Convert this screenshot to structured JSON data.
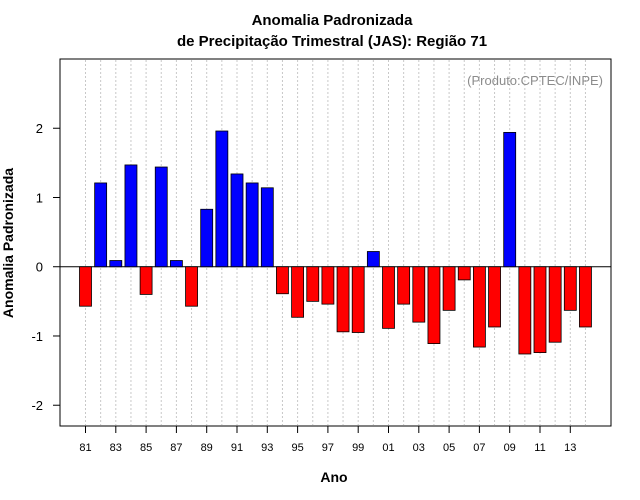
{
  "chart_data": {
    "type": "bar",
    "title": "Anomalia Padronizada",
    "subtitle": "de Precipitação Trimestral (JAS): Região 71",
    "xlabel": "Ano",
    "ylabel": "Anomalia Padronizada",
    "annotation": "(Produto:CPTEC/INPE)",
    "categories": [
      "81",
      "82",
      "83",
      "84",
      "85",
      "86",
      "87",
      "88",
      "89",
      "90",
      "91",
      "92",
      "93",
      "94",
      "95",
      "96",
      "97",
      "98",
      "99",
      "00",
      "01",
      "02",
      "03",
      "04",
      "05",
      "06",
      "07",
      "08",
      "09",
      "10",
      "11",
      "12",
      "13",
      "14"
    ],
    "values": [
      -0.57,
      1.21,
      0.09,
      1.47,
      -0.4,
      1.44,
      0.09,
      -0.57,
      0.83,
      1.96,
      1.34,
      1.21,
      1.14,
      -0.39,
      -0.73,
      -0.5,
      -0.54,
      -0.94,
      -0.95,
      0.22,
      -0.89,
      -0.54,
      -0.8,
      -1.11,
      -0.63,
      -0.19,
      -1.16,
      -0.87,
      1.94,
      -1.26,
      -1.24,
      -1.09,
      -0.63,
      -0.87
    ],
    "x_tick_labels": [
      "81",
      "83",
      "85",
      "87",
      "89",
      "91",
      "93",
      "95",
      "97",
      "99",
      "01",
      "03",
      "05",
      "07",
      "09",
      "11",
      "13"
    ],
    "y_ticks": [
      -2,
      -1,
      0,
      1,
      2
    ],
    "ylim": [
      -2.3,
      3.0
    ],
    "grid": "vertical dotted",
    "colors": {
      "positive": "#0000ff",
      "negative": "#ff0000",
      "grid": "#c8c8c8"
    }
  }
}
